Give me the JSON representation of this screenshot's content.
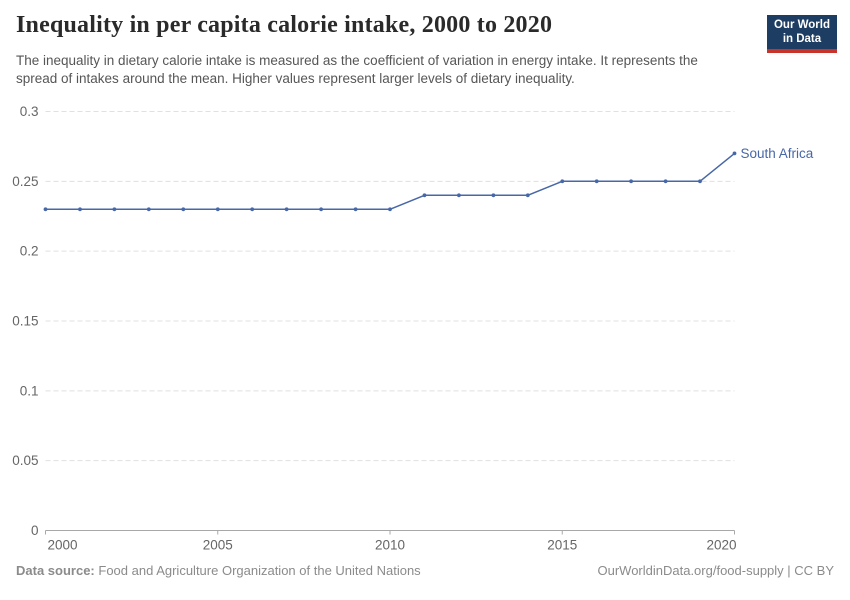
{
  "header": {
    "title": "Inequality in per capita calorie intake, 2000 to 2020",
    "subtitle": "The inequality in dietary calorie intake is measured as the coefficient of variation in energy intake. It represents the spread of intakes around the mean. Higher values represent larger levels of dietary inequality."
  },
  "logo": {
    "line1": "Our World",
    "line2": "in Data",
    "bg_color": "#1d3d63",
    "stripe_color": "#c8342c"
  },
  "footer": {
    "source_label": "Data source:",
    "source_text": "Food and Agriculture Organization of the United Nations",
    "credit": "OurWorldinData.org/food-supply | CC BY"
  },
  "chart_data": {
    "type": "line",
    "title": "Inequality in per capita calorie intake, 2000 to 2020",
    "xlabel": "",
    "ylabel": "",
    "x": [
      2000,
      2001,
      2002,
      2003,
      2004,
      2005,
      2006,
      2007,
      2008,
      2009,
      2010,
      2011,
      2012,
      2013,
      2014,
      2015,
      2016,
      2017,
      2018,
      2019,
      2020
    ],
    "series": [
      {
        "name": "South Africa",
        "color": "#4767a7",
        "values": [
          0.23,
          0.23,
          0.23,
          0.23,
          0.23,
          0.23,
          0.23,
          0.23,
          0.23,
          0.23,
          0.23,
          0.24,
          0.24,
          0.24,
          0.24,
          0.25,
          0.25,
          0.25,
          0.25,
          0.25,
          0.27
        ]
      }
    ],
    "xlim": [
      2000,
      2020
    ],
    "ylim": [
      0,
      0.3
    ],
    "xticks": [
      {
        "value": 2000,
        "label": "2000"
      },
      {
        "value": 2005,
        "label": "2005"
      },
      {
        "value": 2010,
        "label": "2010"
      },
      {
        "value": 2015,
        "label": "2015"
      },
      {
        "value": 2020,
        "label": "2020"
      }
    ],
    "yticks": [
      {
        "value": 0,
        "label": "0"
      },
      {
        "value": 0.05,
        "label": "0.05"
      },
      {
        "value": 0.1,
        "label": "0.1"
      },
      {
        "value": 0.15,
        "label": "0.15"
      },
      {
        "value": 0.2,
        "label": "0.2"
      },
      {
        "value": 0.25,
        "label": "0.25"
      },
      {
        "value": 0.3,
        "label": "0.3"
      }
    ],
    "grid": "horizontal-dashed",
    "grid_color": "#e0e0e0",
    "axis_color": "#a8a8a8",
    "tick_text_color": "#666666",
    "legend": "end-of-line-label",
    "marker": "dot-every-year"
  }
}
